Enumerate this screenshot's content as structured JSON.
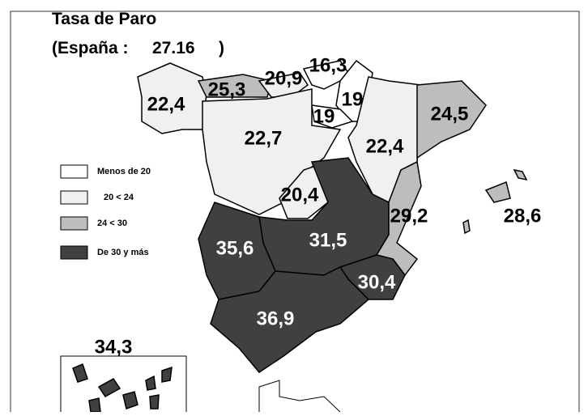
{
  "header": {
    "title": "Tasa de Paro",
    "subtitle_prefix": "(España :",
    "national_value": "27.16",
    "subtitle_suffix": ")"
  },
  "legend": [
    {
      "label": "Menos de 20",
      "color": "#ffffff"
    },
    {
      "label": "20  < 24",
      "color": "#f0f0f0"
    },
    {
      "label": "24 < 30",
      "color": "#bdbdbd"
    },
    {
      "label": "De 30 y más",
      "color": "#404040"
    }
  ],
  "regions": [
    {
      "label": "22,4",
      "class": 1
    },
    {
      "label": "25,3",
      "class": 2
    },
    {
      "label": "20,9",
      "class": 1
    },
    {
      "label": "16,3",
      "class": 0
    },
    {
      "label": "19",
      "class": 0
    },
    {
      "label": "19",
      "class": 0
    },
    {
      "label": "22,7",
      "class": 1
    },
    {
      "label": "22,4",
      "class": 1
    },
    {
      "label": "24,5",
      "class": 2
    },
    {
      "label": "20,4",
      "class": 1
    },
    {
      "label": "31,5",
      "class": 3
    },
    {
      "label": "35,6",
      "class": 3
    },
    {
      "label": "29,2",
      "class": 2
    },
    {
      "label": "28,6",
      "class": 2
    },
    {
      "label": "30,4",
      "class": 3
    },
    {
      "label": "36,9",
      "class": 3
    },
    {
      "label": "34,3",
      "class": 3
    }
  ]
}
